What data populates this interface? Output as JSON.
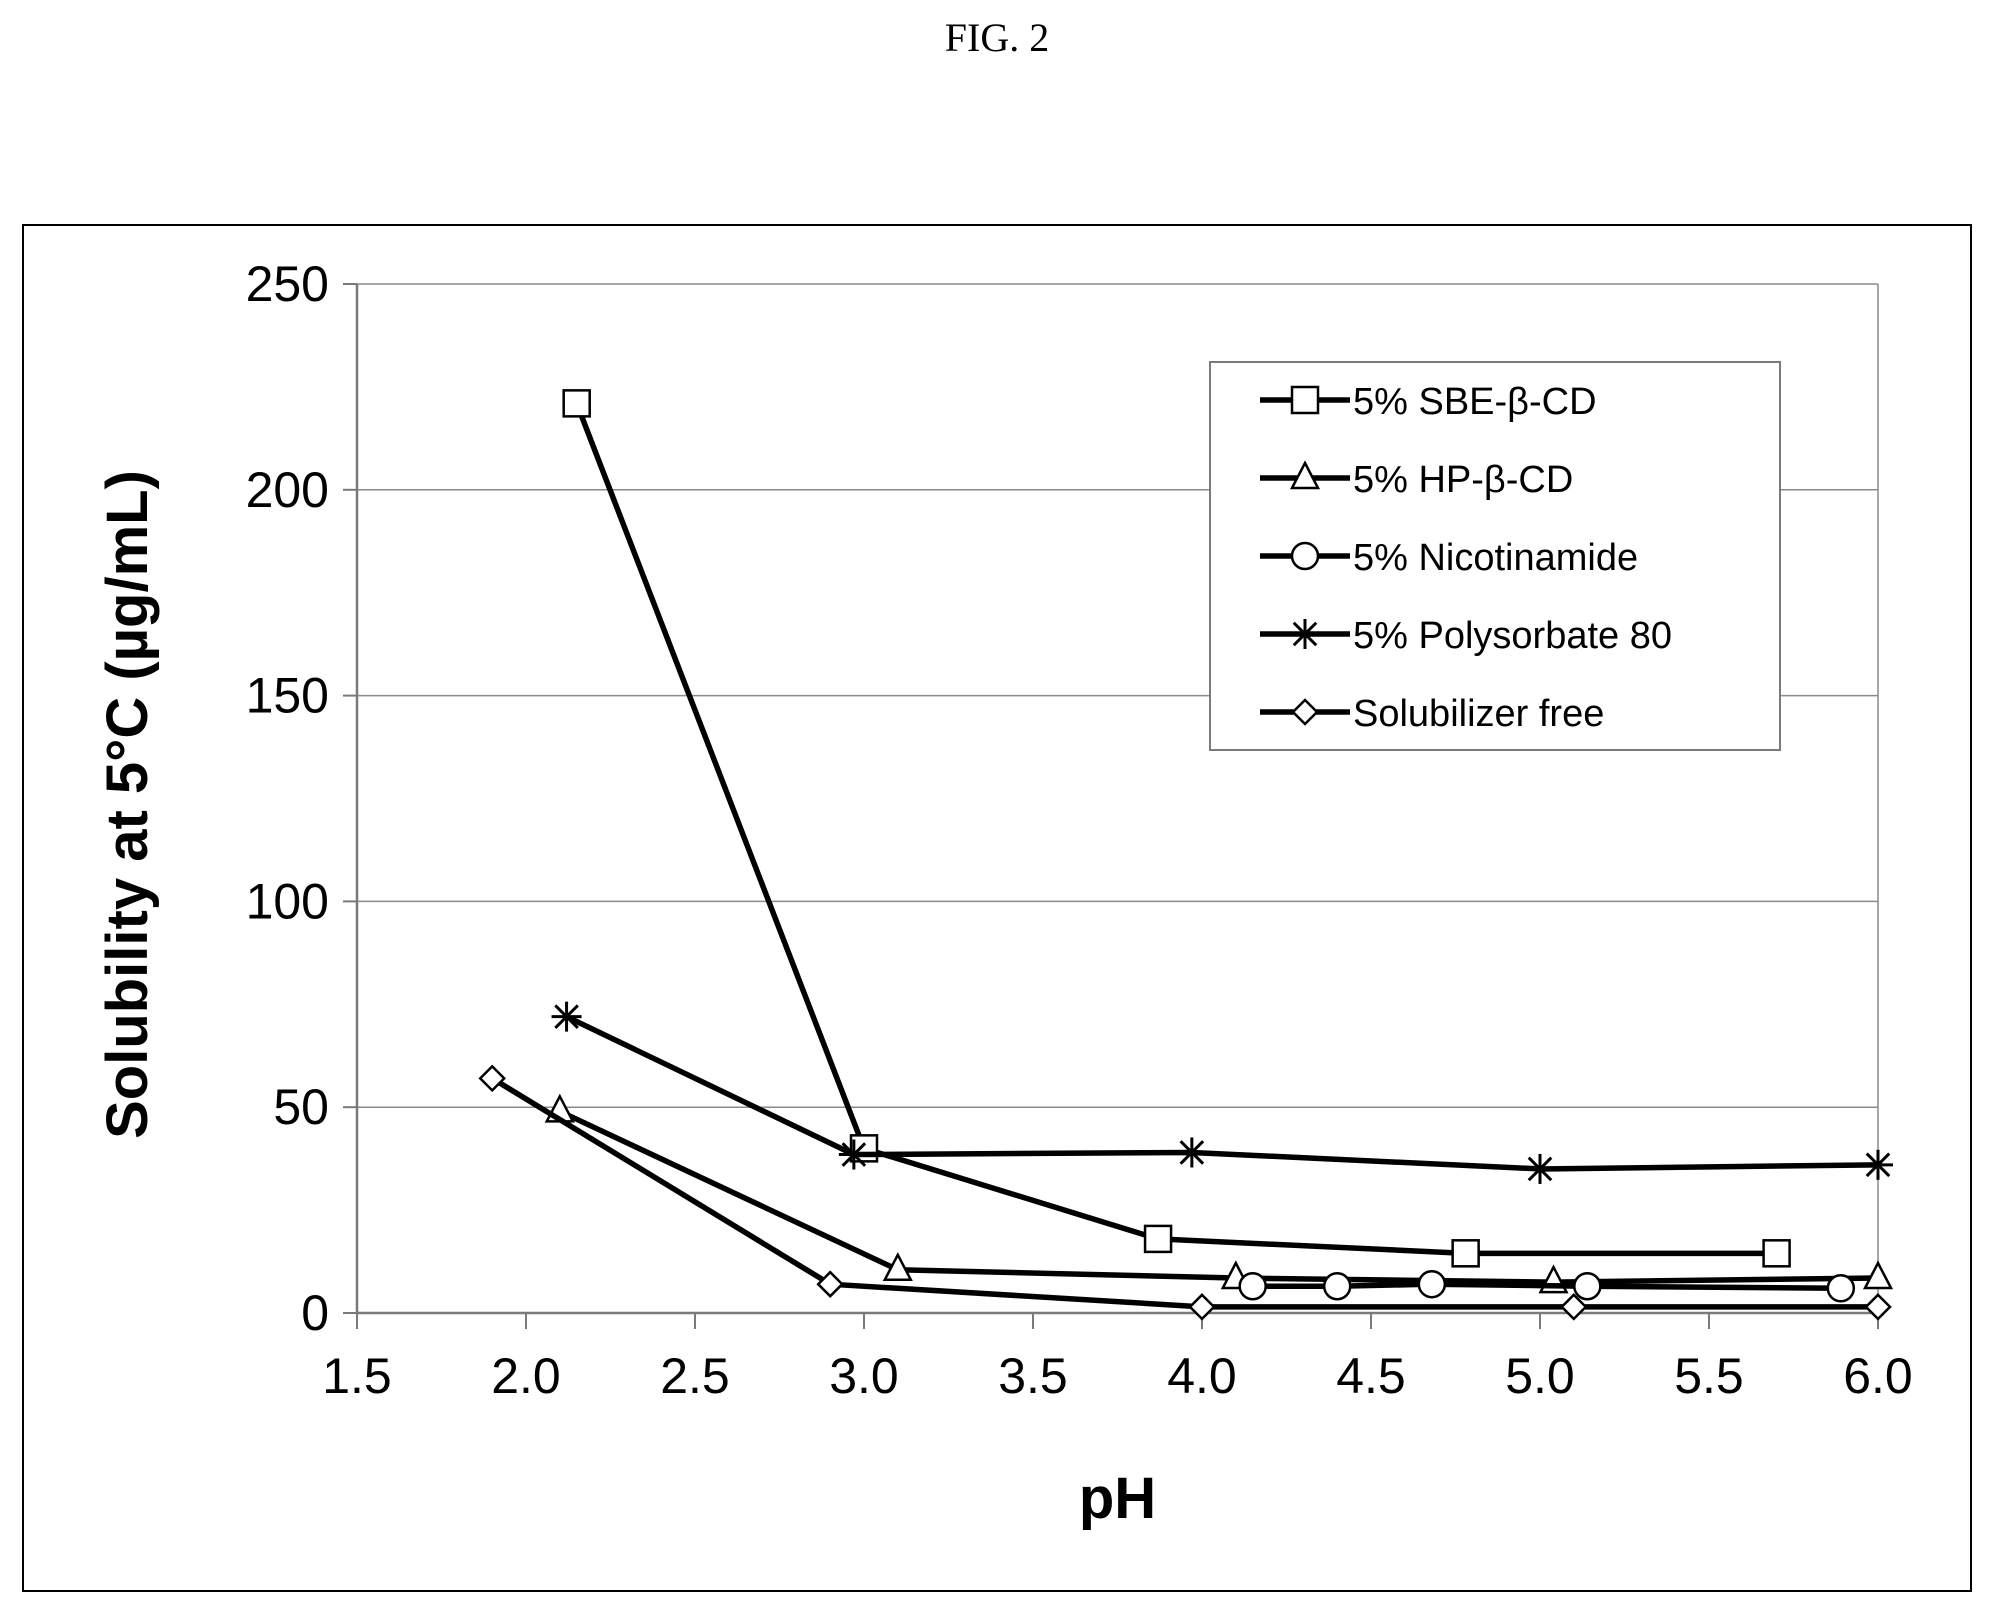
{
  "figure": {
    "label": "FIG. 2"
  },
  "chart_data": {
    "type": "line",
    "title": "",
    "xlabel": "pH",
    "ylabel": "Solubility at 5°C (µg/mL)",
    "xlim": [
      1.5,
      6.0
    ],
    "ylim": [
      0,
      250
    ],
    "xticks": [
      "1.5",
      "2.0",
      "2.5",
      "3.0",
      "3.5",
      "4.0",
      "4.5",
      "5.0",
      "5.5",
      "6.0"
    ],
    "yticks": [
      "0",
      "50",
      "100",
      "150",
      "200",
      "250"
    ],
    "grid": "horizontal",
    "legend_position": "top-right",
    "series": [
      {
        "name": "5% SBE-β-CD",
        "marker": "square",
        "points": [
          [
            2.15,
            221
          ],
          [
            3.0,
            40
          ],
          [
            3.87,
            18
          ],
          [
            4.78,
            14.5
          ],
          [
            5.7,
            14.5
          ]
        ]
      },
      {
        "name": "5% HP-β-CD",
        "marker": "triangle",
        "points": [
          [
            2.1,
            49
          ],
          [
            3.1,
            10.5
          ],
          [
            4.1,
            8.5
          ],
          [
            5.04,
            7.5
          ],
          [
            6.0,
            8.5
          ]
        ]
      },
      {
        "name": "5% Nicotinamide",
        "marker": "circle",
        "points": [
          [
            4.15,
            6.5
          ],
          [
            4.4,
            6.5
          ],
          [
            4.68,
            7
          ],
          [
            5.14,
            6.5
          ],
          [
            5.89,
            6
          ]
        ]
      },
      {
        "name": "5% Polysorbate 80",
        "marker": "star",
        "points": [
          [
            2.12,
            72
          ],
          [
            2.97,
            38.5
          ],
          [
            3.97,
            39
          ],
          [
            5.0,
            35
          ],
          [
            6.0,
            36
          ]
        ]
      },
      {
        "name": "Solubilizer free",
        "marker": "diamond",
        "points": [
          [
            1.9,
            57
          ],
          [
            2.9,
            7
          ],
          [
            4.0,
            1.5
          ],
          [
            5.1,
            1.5
          ],
          [
            6.0,
            1.5
          ]
        ]
      }
    ]
  }
}
